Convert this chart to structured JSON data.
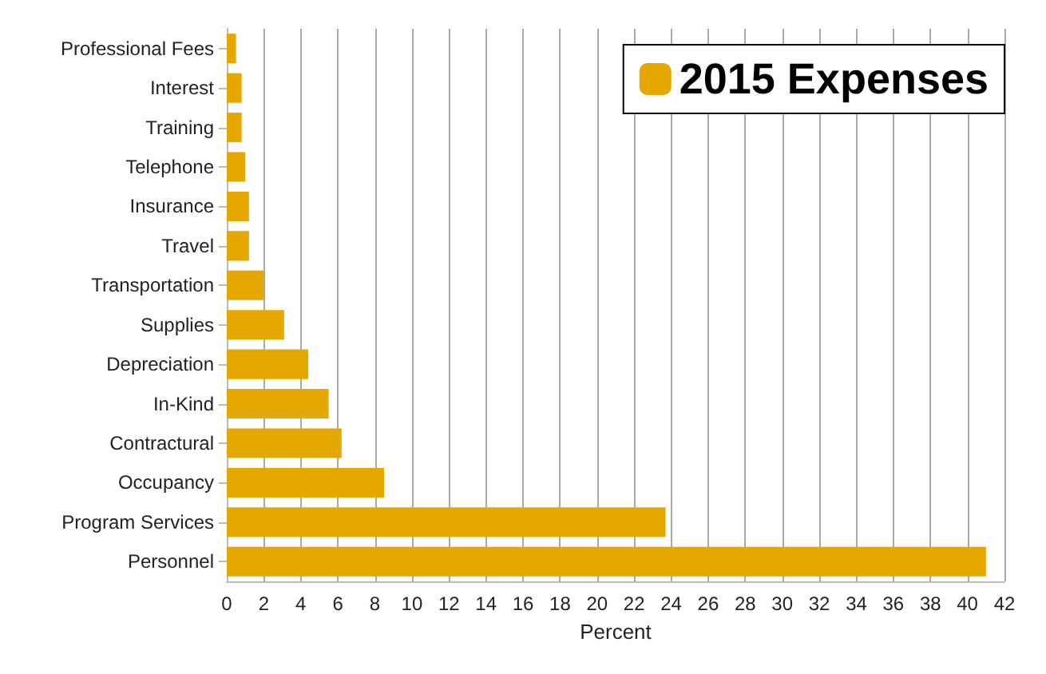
{
  "chart_data": {
    "type": "bar",
    "orientation": "horizontal",
    "xlabel": "Percent",
    "categories": [
      "Professional Fees",
      "Interest",
      "Training",
      "Telephone",
      "Insurance",
      "Travel",
      "Transportation",
      "Supplies",
      "Depreciation",
      "In-Kind",
      "Contractural",
      "Occupancy",
      "Program Services",
      "Personnel"
    ],
    "series": [
      {
        "name": "2015 Expenses",
        "color": "#e5a800",
        "values": [
          0.5,
          0.8,
          0.8,
          1.0,
          1.2,
          1.2,
          2.0,
          3.1,
          4.4,
          5.5,
          6.2,
          8.5,
          23.7,
          41.0
        ]
      }
    ],
    "xlim": [
      0,
      42
    ],
    "xticks": [
      0,
      2,
      4,
      6,
      8,
      10,
      12,
      14,
      16,
      18,
      20,
      22,
      24,
      26,
      28,
      30,
      32,
      34,
      36,
      38,
      40,
      42
    ],
    "grid": "x",
    "legend": "top right"
  }
}
